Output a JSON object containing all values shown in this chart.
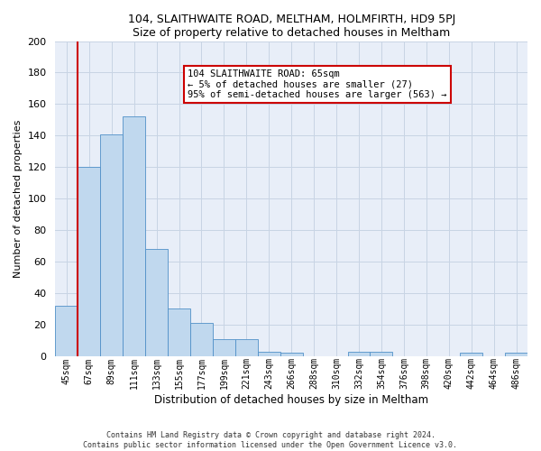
{
  "title1": "104, SLAITHWAITE ROAD, MELTHAM, HOLMFIRTH, HD9 5PJ",
  "title2": "Size of property relative to detached houses in Meltham",
  "xlabel": "Distribution of detached houses by size in Meltham",
  "ylabel": "Number of detached properties",
  "footer1": "Contains HM Land Registry data © Crown copyright and database right 2024.",
  "footer2": "Contains public sector information licensed under the Open Government Licence v3.0.",
  "categories": [
    "45sqm",
    "67sqm",
    "89sqm",
    "111sqm",
    "133sqm",
    "155sqm",
    "177sqm",
    "199sqm",
    "221sqm",
    "243sqm",
    "266sqm",
    "288sqm",
    "310sqm",
    "332sqm",
    "354sqm",
    "376sqm",
    "398sqm",
    "420sqm",
    "442sqm",
    "464sqm",
    "486sqm"
  ],
  "values": [
    32,
    120,
    141,
    152,
    68,
    30,
    21,
    11,
    11,
    3,
    2,
    0,
    0,
    3,
    3,
    0,
    0,
    0,
    2,
    0,
    2
  ],
  "bar_facecolor": "#c0d8ee",
  "bar_edgecolor": "#5090c8",
  "vline_color": "#cc0000",
  "vline_x": 0.5,
  "ylim": [
    0,
    200
  ],
  "yticks": [
    0,
    20,
    40,
    60,
    80,
    100,
    120,
    140,
    160,
    180,
    200
  ],
  "ann_line1": "104 SLAITHWAITE ROAD: 65sqm",
  "ann_line2": "← 5% of detached houses are smaller (27)",
  "ann_line3": "95% of semi-detached houses are larger (563) →",
  "ann_box_edge": "#cc0000",
  "ann_box_face": "#ffffff",
  "grid_color": "#c8d4e4",
  "axes_bg": "#e8eef8",
  "fig_bg": "#ffffff"
}
